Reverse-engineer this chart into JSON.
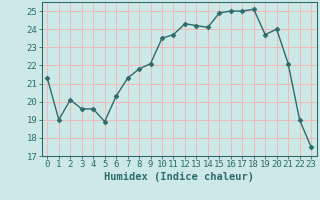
{
  "x": [
    0,
    1,
    2,
    3,
    4,
    5,
    6,
    7,
    8,
    9,
    10,
    11,
    12,
    13,
    14,
    15,
    16,
    17,
    18,
    19,
    20,
    21,
    22,
    23
  ],
  "y": [
    21.3,
    19.0,
    20.1,
    19.6,
    19.6,
    18.9,
    20.3,
    21.3,
    21.8,
    22.1,
    23.5,
    23.7,
    24.3,
    24.2,
    24.1,
    24.9,
    25.0,
    25.0,
    25.1,
    23.7,
    24.0,
    22.1,
    19.0,
    17.5
  ],
  "line_color": "#2e6b6b",
  "marker": "D",
  "marker_size": 2.5,
  "bg_color": "#cce9e8",
  "grid_color": "#f0b8b8",
  "title": "",
  "xlabel": "Humidex (Indice chaleur)",
  "ylabel": "",
  "xlim": [
    -0.5,
    23.5
  ],
  "ylim": [
    17,
    25.5
  ],
  "yticks": [
    17,
    18,
    19,
    20,
    21,
    22,
    23,
    24,
    25
  ],
  "xticks": [
    0,
    1,
    2,
    3,
    4,
    5,
    6,
    7,
    8,
    9,
    10,
    11,
    12,
    13,
    14,
    15,
    16,
    17,
    18,
    19,
    20,
    21,
    22,
    23
  ],
  "xlabel_fontsize": 7.5,
  "tick_fontsize": 6.5,
  "line_width": 1.0
}
